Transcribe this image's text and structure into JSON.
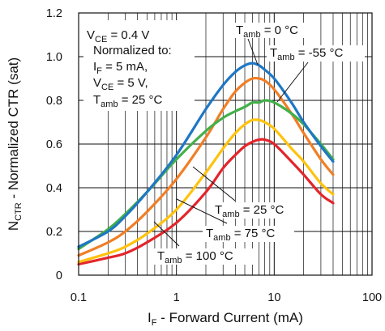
{
  "chart_data": {
    "type": "line",
    "title": "",
    "xlabel": {
      "main": "I",
      "sub": "F",
      "rest": " - Forward Current (mA)"
    },
    "ylabel": {
      "main": "N",
      "sub": "CTR",
      "rest": " - Normalized CTR (sat)"
    },
    "xscale": "log",
    "xlim": [
      0.1,
      100
    ],
    "ylim": [
      0,
      1.2
    ],
    "xticks": [
      {
        "v": 0.1,
        "label": "0.1"
      },
      {
        "v": 1,
        "label": "1"
      },
      {
        "v": 10,
        "label": "10"
      },
      {
        "v": 100,
        "label": "100"
      }
    ],
    "yticks": [
      {
        "v": 0,
        "label": "0"
      },
      {
        "v": 0.2,
        "label": "0.2"
      },
      {
        "v": 0.4,
        "label": "0.4"
      },
      {
        "v": 0.6,
        "label": "0.6"
      },
      {
        "v": 0.8,
        "label": "0.8"
      },
      {
        "v": 1.0,
        "label": "1.0"
      },
      {
        "v": 1.2,
        "label": "1.2"
      }
    ],
    "grid": true,
    "conditions": [
      {
        "main": "V",
        "sub": "CE",
        "rest": " = 0.4 V"
      },
      {
        "main": "Normalized to:",
        "sub": "",
        "rest": ""
      },
      {
        "main": "I",
        "sub": "F",
        "rest": " = 5 mA,"
      },
      {
        "main": "V",
        "sub": "CE",
        "rest": " = 5 V,"
      },
      {
        "main": "T",
        "sub": "amb",
        "rest": " = 25 °C"
      }
    ],
    "series": [
      {
        "label": {
          "main": "T",
          "sub": "amb",
          "rest": " = 0 °C"
        },
        "color": "#1f77c4",
        "x": [
          0.1,
          0.2,
          0.3,
          0.5,
          1,
          2,
          3,
          4,
          5,
          6,
          7,
          8,
          10,
          15,
          20,
          30,
          40
        ],
        "y": [
          0.13,
          0.2,
          0.27,
          0.38,
          0.55,
          0.76,
          0.87,
          0.93,
          0.96,
          0.97,
          0.96,
          0.94,
          0.9,
          0.79,
          0.7,
          0.59,
          0.52
        ]
      },
      {
        "label": {
          "main": "T",
          "sub": "amb",
          "rest": " = -55 °C"
        },
        "color": "#43b049",
        "x": [
          0.1,
          0.2,
          0.3,
          0.5,
          1,
          2,
          3,
          4,
          5,
          6,
          7,
          8,
          10,
          15,
          20,
          30,
          40
        ],
        "y": [
          0.12,
          0.21,
          0.28,
          0.38,
          0.53,
          0.66,
          0.72,
          0.75,
          0.77,
          0.79,
          0.79,
          0.8,
          0.79,
          0.74,
          0.69,
          0.6,
          0.53
        ]
      },
      {
        "label": {
          "main": "T",
          "sub": "amb",
          "rest": " = 25 °C"
        },
        "color": "#f07e26",
        "x": [
          0.1,
          0.2,
          0.3,
          0.5,
          1,
          2,
          3,
          4,
          5,
          6,
          7,
          8,
          10,
          15,
          20,
          30,
          40
        ],
        "y": [
          0.09,
          0.15,
          0.2,
          0.29,
          0.44,
          0.63,
          0.76,
          0.84,
          0.88,
          0.9,
          0.9,
          0.89,
          0.85,
          0.74,
          0.65,
          0.53,
          0.46
        ]
      },
      {
        "label": {
          "main": "T",
          "sub": "amb",
          "rest": " = 75 °C"
        },
        "color": "#ffc20e",
        "x": [
          0.1,
          0.2,
          0.3,
          0.5,
          1,
          2,
          3,
          4,
          5,
          6,
          7,
          8,
          10,
          15,
          20,
          30,
          40
        ],
        "y": [
          0.06,
          0.1,
          0.13,
          0.19,
          0.3,
          0.47,
          0.58,
          0.65,
          0.69,
          0.71,
          0.71,
          0.7,
          0.67,
          0.58,
          0.52,
          0.42,
          0.37
        ]
      },
      {
        "label": {
          "main": "T",
          "sub": "amb",
          "rest": " = 100 °C"
        },
        "color": "#e3252b",
        "x": [
          0.1,
          0.2,
          0.3,
          0.5,
          1,
          2,
          3,
          4,
          5,
          6,
          7,
          8,
          10,
          15,
          20,
          30,
          40
        ],
        "y": [
          0.05,
          0.08,
          0.1,
          0.15,
          0.24,
          0.38,
          0.49,
          0.55,
          0.59,
          0.61,
          0.62,
          0.62,
          0.6,
          0.52,
          0.46,
          0.37,
          0.33
        ]
      }
    ]
  }
}
